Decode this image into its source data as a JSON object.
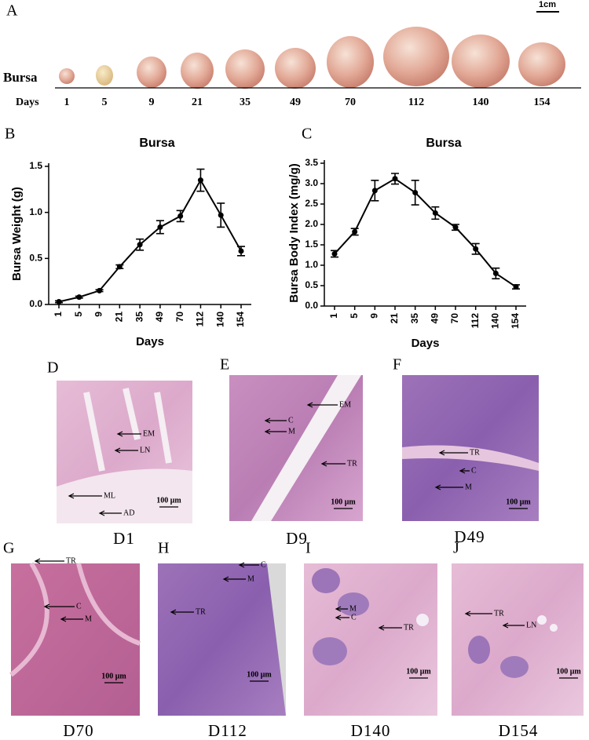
{
  "panel_a": {
    "label": "A",
    "scale": "1cm",
    "row_label": "Bursa",
    "days_label": "Days",
    "days": [
      "1",
      "5",
      "9",
      "21",
      "35",
      "49",
      "70",
      "112",
      "140",
      "154"
    ]
  },
  "chart_data": [
    {
      "type": "line",
      "label": "B",
      "title": "Bursa",
      "x_label": "Days",
      "y_label": "Bursa Weight (g)",
      "categories": [
        "1",
        "5",
        "9",
        "21",
        "35",
        "49",
        "70",
        "112",
        "140",
        "154"
      ],
      "values": [
        0.03,
        0.08,
        0.15,
        0.41,
        0.65,
        0.84,
        0.96,
        1.35,
        0.97,
        0.58
      ],
      "errors": [
        0.01,
        0.01,
        0.01,
        0.02,
        0.06,
        0.07,
        0.06,
        0.12,
        0.13,
        0.05
      ],
      "color": "#000000",
      "ylim": [
        0,
        1.5
      ],
      "yticks": [
        {
          "value": 0,
          "label": "0.0"
        },
        0.5,
        {
          "value": 1,
          "label": "1.0"
        },
        1.5
      ]
    },
    {
      "type": "line",
      "label": "C",
      "title": "Bursa",
      "x_label": "Days",
      "y_label": "Bursa Body Index (mg/g)",
      "categories": [
        "1",
        "5",
        "9",
        "21",
        "35",
        "49",
        "70",
        "112",
        "140",
        "154"
      ],
      "values": [
        1.28,
        1.82,
        2.83,
        3.12,
        2.78,
        2.28,
        1.93,
        1.4,
        0.8,
        0.47
      ],
      "errors": [
        0.08,
        0.08,
        0.25,
        0.13,
        0.3,
        0.15,
        0.07,
        0.13,
        0.13,
        0.05
      ],
      "color": "#000000",
      "ylim": [
        0,
        3.5
      ],
      "yticks": [
        {
          "value": 0,
          "label": "0.0"
        },
        0.5,
        {
          "value": 1,
          "label": "1.0"
        },
        1.5,
        {
          "value": 2,
          "label": "2.0"
        },
        2.5,
        {
          "value": 3,
          "label": "3.0"
        },
        3.5
      ]
    }
  ],
  "histology": [
    {
      "label": "D",
      "caption": "D1",
      "markers": [
        "EM",
        "LN",
        "ML",
        "AD"
      ],
      "scale": "100 μm"
    },
    {
      "label": "E",
      "caption": "D9",
      "markers": [
        "EM",
        "C",
        "M",
        "TR"
      ],
      "scale": "100 μm"
    },
    {
      "label": "F",
      "caption": "D49",
      "markers": [
        "TR",
        "C",
        "M"
      ],
      "scale": "100 μm"
    },
    {
      "label": "G",
      "caption": "D70",
      "markers": [
        "TR",
        "C",
        "M"
      ],
      "scale": "100 μm"
    },
    {
      "label": "H",
      "caption": "D112",
      "markers": [
        "C",
        "M",
        "TR"
      ],
      "scale": "100 μm"
    },
    {
      "label": "I",
      "caption": "D140",
      "markers": [
        "M",
        "C",
        "TR"
      ],
      "scale": "100 μm"
    },
    {
      "label": "J",
      "caption": "D154",
      "markers": [
        "TR",
        "LN"
      ],
      "scale": "100 μm"
    }
  ]
}
